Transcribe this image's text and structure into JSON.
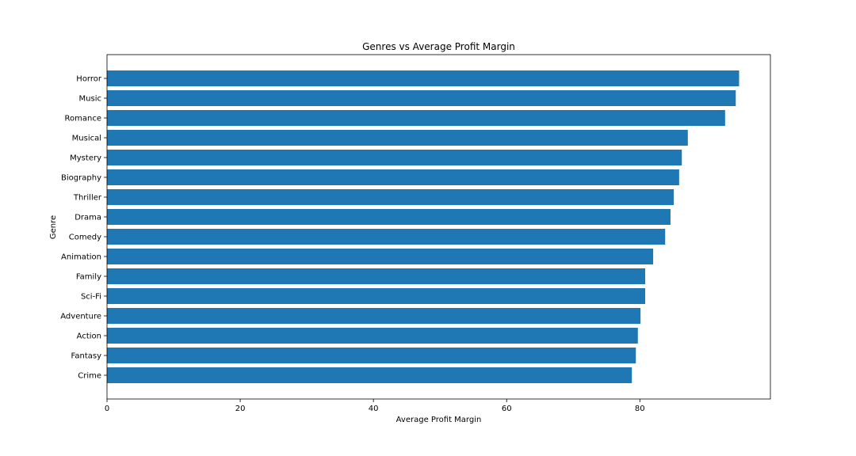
{
  "chart_data": {
    "type": "bar",
    "orientation": "horizontal",
    "title": "Genres vs Average Profit Margin",
    "xlabel": "Average Profit Margin",
    "ylabel": "Genre",
    "xlim": [
      0,
      99.6
    ],
    "xticks": [
      "0",
      "20",
      "40",
      "60",
      "80"
    ],
    "grid": false,
    "bar_color": "#1f77b4",
    "categories": [
      "Horror",
      "Music",
      "Romance",
      "Musical",
      "Mystery",
      "Biography",
      "Thriller",
      "Drama",
      "Comedy",
      "Animation",
      "Family",
      "Sci-Fi",
      "Adventure",
      "Action",
      "Fantasy",
      "Crime"
    ],
    "values": [
      94.9,
      94.4,
      92.8,
      87.2,
      86.3,
      85.9,
      85.1,
      84.6,
      83.8,
      82.0,
      80.8,
      80.8,
      80.1,
      79.7,
      79.4,
      78.8
    ]
  }
}
